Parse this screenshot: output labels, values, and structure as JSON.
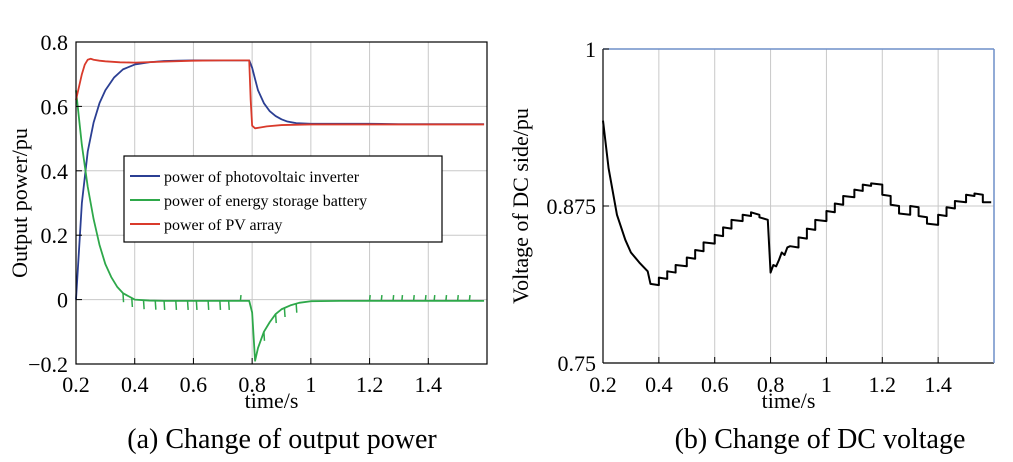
{
  "chart_data": [
    {
      "type": "line",
      "caption": "(a) Change of output power",
      "xlabel": "time/s",
      "ylabel": "Output power/pu",
      "xlim": [
        0.2,
        1.6
      ],
      "ylim": [
        -0.2,
        0.8
      ],
      "xticks": [
        0.2,
        0.4,
        0.6,
        0.8,
        1,
        1.2,
        1.4
      ],
      "xtick_labels": [
        "0.2",
        "0.4",
        "0.6",
        "0.8",
        "1",
        "1.2",
        "1.4"
      ],
      "yticks": [
        -0.2,
        0,
        0.2,
        0.4,
        0.6,
        0.8
      ],
      "ytick_labels": [
        "−0.2",
        "0",
        "0.2",
        "0.4",
        "0.6",
        "0.8"
      ],
      "grid": true,
      "legend_position": "center",
      "series": [
        {
          "name": "power of photovoltaic inverter",
          "color": "#2b3f93",
          "x": [
            0.2,
            0.22,
            0.24,
            0.26,
            0.28,
            0.3,
            0.33,
            0.36,
            0.4,
            0.45,
            0.5,
            0.55,
            0.6,
            0.65,
            0.7,
            0.75,
            0.79,
            0.8,
            0.82,
            0.84,
            0.86,
            0.88,
            0.9,
            0.92,
            0.95,
            1.0,
            1.1,
            1.2,
            1.3,
            1.4,
            1.5,
            1.59
          ],
          "values": [
            0.0,
            0.3,
            0.46,
            0.55,
            0.61,
            0.65,
            0.69,
            0.715,
            0.73,
            0.737,
            0.741,
            0.742,
            0.743,
            0.743,
            0.743,
            0.743,
            0.743,
            0.72,
            0.65,
            0.61,
            0.585,
            0.57,
            0.56,
            0.553,
            0.548,
            0.546,
            0.546,
            0.546,
            0.545,
            0.545,
            0.545,
            0.545
          ]
        },
        {
          "name": "power of energy storage battery",
          "color": "#2ea84a",
          "x": [
            0.2,
            0.22,
            0.24,
            0.26,
            0.28,
            0.3,
            0.32,
            0.34,
            0.36,
            0.38,
            0.4,
            0.45,
            0.5,
            0.6,
            0.7,
            0.79,
            0.8,
            0.81,
            0.82,
            0.84,
            0.86,
            0.88,
            0.9,
            0.93,
            0.96,
            1.0,
            1.1,
            1.2,
            1.3,
            1.4,
            1.5,
            1.59
          ],
          "values": [
            0.65,
            0.48,
            0.35,
            0.25,
            0.17,
            0.11,
            0.07,
            0.04,
            0.02,
            0.01,
            0.0,
            -0.003,
            -0.004,
            -0.004,
            -0.004,
            -0.004,
            -0.04,
            -0.19,
            -0.15,
            -0.1,
            -0.07,
            -0.045,
            -0.03,
            -0.018,
            -0.01,
            -0.005,
            -0.004,
            -0.004,
            -0.004,
            -0.004,
            -0.004,
            -0.004
          ]
        },
        {
          "name": "power of PV array",
          "color": "#d93a2b",
          "x": [
            0.2,
            0.21,
            0.22,
            0.23,
            0.24,
            0.25,
            0.26,
            0.28,
            0.3,
            0.35,
            0.4,
            0.5,
            0.6,
            0.7,
            0.79,
            0.795,
            0.8,
            0.81,
            0.83,
            0.85,
            0.9,
            1.0,
            1.2,
            1.4,
            1.59
          ],
          "values": [
            0.62,
            0.66,
            0.7,
            0.73,
            0.745,
            0.748,
            0.745,
            0.742,
            0.74,
            0.737,
            0.736,
            0.739,
            0.742,
            0.743,
            0.743,
            0.62,
            0.54,
            0.532,
            0.535,
            0.538,
            0.542,
            0.544,
            0.544,
            0.544,
            0.544
          ]
        }
      ]
    },
    {
      "type": "line",
      "caption": "(b) Change of DC voltage",
      "xlabel": "time/s",
      "ylabel": "Voltage of DC side/pu",
      "xlim": [
        0.2,
        1.6
      ],
      "ylim": [
        0.75,
        1.0
      ],
      "xticks": [
        0.2,
        0.4,
        0.6,
        0.8,
        1,
        1.2,
        1.4
      ],
      "xtick_labels": [
        "0.2",
        "0.4",
        "0.6",
        "0.8",
        "1",
        "1.2",
        "1.4"
      ],
      "yticks": [
        0.75,
        0.875,
        1.0
      ],
      "ytick_labels": [
        "0.75",
        "0.875",
        "1"
      ],
      "grid": true,
      "series": [
        {
          "color": "#000000",
          "x": [
            0.2,
            0.22,
            0.25,
            0.28,
            0.3,
            0.33,
            0.36,
            0.37,
            0.4,
            0.4,
            0.43,
            0.43,
            0.46,
            0.46,
            0.5,
            0.5,
            0.53,
            0.53,
            0.56,
            0.56,
            0.6,
            0.6,
            0.63,
            0.63,
            0.66,
            0.66,
            0.7,
            0.7,
            0.73,
            0.73,
            0.76,
            0.76,
            0.79,
            0.8,
            0.81,
            0.82,
            0.83,
            0.84,
            0.85,
            0.86,
            0.87,
            0.9,
            0.9,
            0.93,
            0.93,
            0.96,
            0.96,
            1.0,
            1.0,
            1.03,
            1.03,
            1.06,
            1.06,
            1.1,
            1.1,
            1.13,
            1.13,
            1.16,
            1.16,
            1.2,
            1.2,
            1.23,
            1.23,
            1.26,
            1.26,
            1.3,
            1.3,
            1.33,
            1.33,
            1.36,
            1.36,
            1.4,
            1.4,
            1.43,
            1.43,
            1.46,
            1.46,
            1.5,
            1.5,
            1.53,
            1.53,
            1.56,
            1.56,
            1.59
          ],
          "values": [
            0.943,
            0.905,
            0.868,
            0.848,
            0.838,
            0.83,
            0.823,
            0.813,
            0.812,
            0.818,
            0.817,
            0.823,
            0.822,
            0.828,
            0.827,
            0.834,
            0.833,
            0.84,
            0.839,
            0.846,
            0.845,
            0.852,
            0.851,
            0.858,
            0.857,
            0.864,
            0.863,
            0.868,
            0.867,
            0.87,
            0.868,
            0.866,
            0.864,
            0.822,
            0.828,
            0.827,
            0.832,
            0.838,
            0.836,
            0.842,
            0.843,
            0.842,
            0.85,
            0.849,
            0.857,
            0.856,
            0.864,
            0.863,
            0.871,
            0.87,
            0.877,
            0.876,
            0.883,
            0.882,
            0.888,
            0.887,
            0.892,
            0.891,
            0.893,
            0.892,
            0.884,
            0.883,
            0.876,
            0.875,
            0.869,
            0.868,
            0.875,
            0.874,
            0.867,
            0.866,
            0.861,
            0.86,
            0.868,
            0.867,
            0.874,
            0.873,
            0.879,
            0.878,
            0.884,
            0.883,
            0.885,
            0.884,
            0.878,
            0.878
          ]
        }
      ]
    }
  ]
}
